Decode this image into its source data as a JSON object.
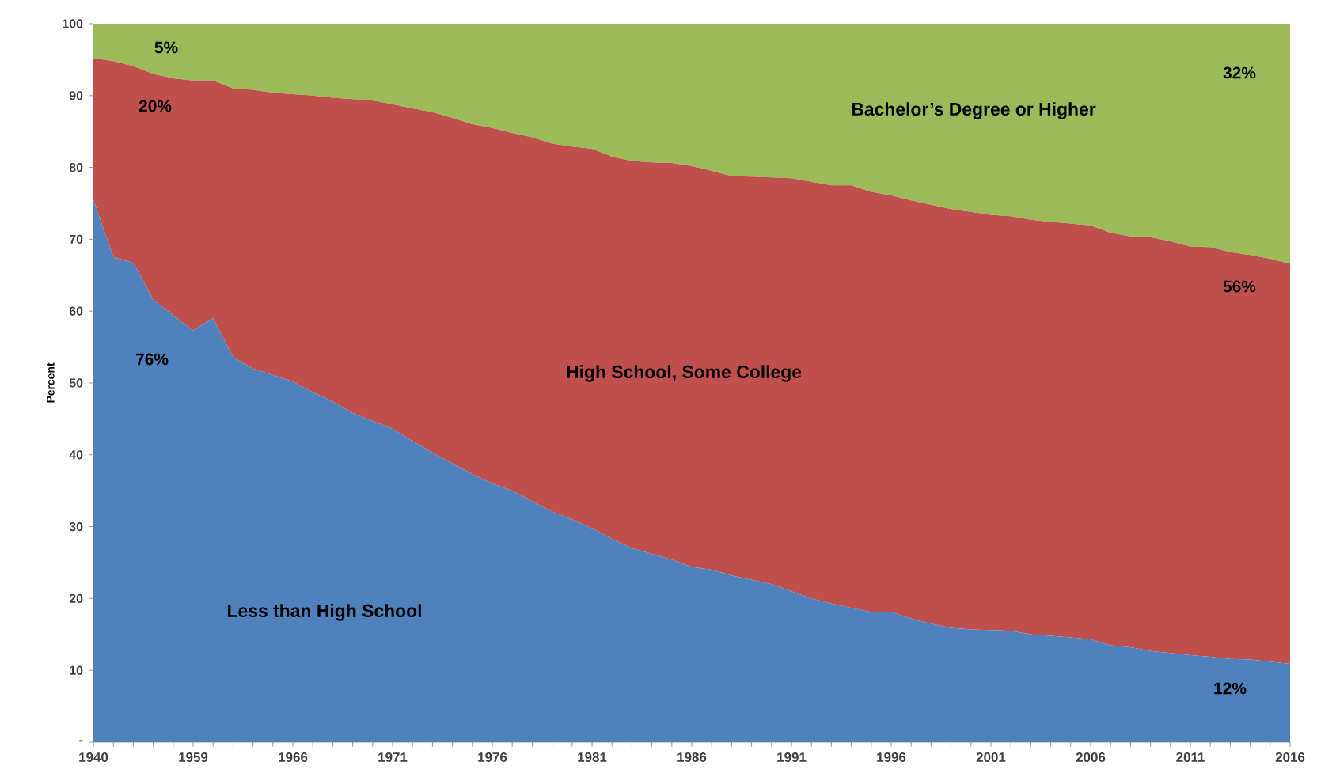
{
  "chart_data": {
    "type": "area",
    "stacked": true,
    "ylabel": "Percent",
    "categories": [
      "1940",
      null,
      null,
      null,
      null,
      "1959",
      null,
      null,
      null,
      null,
      "1966",
      null,
      null,
      null,
      null,
      "1971",
      null,
      null,
      null,
      null,
      "1976",
      null,
      null,
      null,
      null,
      "1981",
      null,
      null,
      null,
      null,
      "1986",
      null,
      null,
      null,
      null,
      "1991",
      null,
      null,
      null,
      null,
      "1996",
      null,
      null,
      null,
      null,
      "2001",
      null,
      null,
      null,
      null,
      "2006",
      null,
      null,
      null,
      null,
      "2011",
      null,
      null,
      null,
      null,
      "2016"
    ],
    "series": [
      {
        "name": "Less than High School",
        "color": "#4f81bd",
        "values": [
          75.5,
          67.5,
          66.7,
          61.6,
          59.4,
          57.3,
          59.0,
          53.6,
          52.0,
          51.1,
          50.2,
          48.7,
          47.4,
          45.8,
          44.7,
          43.6,
          41.9,
          40.3,
          38.8,
          37.3,
          36.0,
          35.0,
          33.5,
          32.1,
          31.0,
          29.8,
          28.3,
          27.0,
          26.2,
          25.4,
          24.4,
          24.0,
          23.2,
          22.6,
          22.0,
          21.0,
          20.0,
          19.3,
          18.7,
          18.1,
          18.1,
          17.2,
          16.5,
          15.9,
          15.7,
          15.6,
          15.5,
          15.0,
          14.8,
          14.6,
          14.3,
          13.5,
          13.2,
          12.7,
          12.4,
          12.1,
          11.9,
          11.6,
          11.5,
          11.2,
          10.9
        ]
      },
      {
        "name": "High School, Some College",
        "color": "#c0504d",
        "values": [
          19.7,
          27.3,
          27.4,
          31.4,
          33.0,
          34.8,
          33.1,
          37.4,
          38.8,
          39.3,
          40.0,
          41.3,
          42.3,
          43.7,
          44.6,
          45.2,
          46.3,
          47.4,
          48.1,
          48.7,
          49.5,
          49.8,
          50.7,
          51.2,
          51.9,
          52.8,
          53.2,
          53.9,
          54.5,
          55.2,
          55.8,
          55.5,
          55.6,
          56.1,
          56.6,
          57.5,
          58.0,
          58.2,
          58.8,
          58.5,
          58.0,
          58.2,
          58.3,
          58.3,
          58.1,
          57.8,
          57.7,
          57.7,
          57.6,
          57.6,
          57.6,
          57.4,
          57.2,
          57.6,
          57.3,
          56.9,
          57.0,
          56.6,
          56.3,
          56.1,
          55.7
        ]
      },
      {
        "name": "Bachelor’s Degree or Higher",
        "color": "#9bbb59",
        "values": [
          4.8,
          5.2,
          5.9,
          7.0,
          7.6,
          7.9,
          7.9,
          9.0,
          9.2,
          9.6,
          9.8,
          10.0,
          10.3,
          10.5,
          10.7,
          11.2,
          11.8,
          12.3,
          13.1,
          14.0,
          14.5,
          15.2,
          15.8,
          16.7,
          17.1,
          17.4,
          18.5,
          19.1,
          19.3,
          19.4,
          19.8,
          20.5,
          21.2,
          21.3,
          21.4,
          21.5,
          22.0,
          22.5,
          22.5,
          23.4,
          23.9,
          24.6,
          25.2,
          25.8,
          26.2,
          26.6,
          26.8,
          27.3,
          27.6,
          27.8,
          28.1,
          29.1,
          29.6,
          29.7,
          30.3,
          31.0,
          31.1,
          31.8,
          32.2,
          32.7,
          33.4
        ]
      }
    ],
    "ylim": [
      0,
      100
    ],
    "yticks": [
      {
        "value": 0,
        "label": "-"
      },
      10,
      20,
      30,
      40,
      50,
      60,
      70,
      80,
      90,
      100
    ],
    "annotations": [
      "5%",
      "20%",
      "76%",
      "32%",
      "56%",
      "12%"
    ]
  }
}
